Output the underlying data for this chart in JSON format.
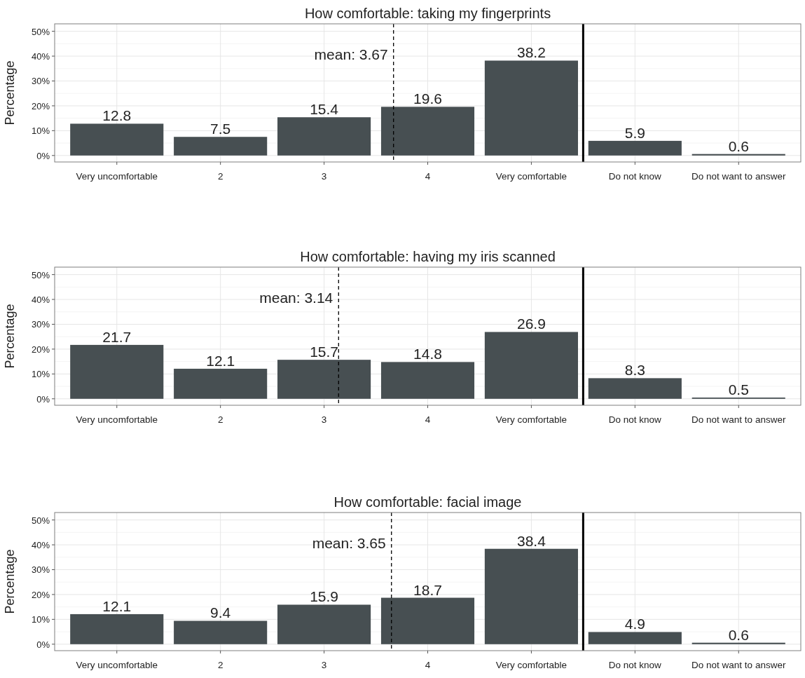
{
  "chart_data": [
    {
      "type": "bar",
      "title": "How comfortable: taking my fingerprints",
      "ylabel": "Percentage",
      "x": [
        1,
        2,
        3,
        4,
        5,
        6,
        7
      ],
      "xlim": [
        0.4,
        7.6
      ],
      "xticks": [
        {
          "value": 1,
          "label": "Very uncomfortable"
        },
        2,
        3,
        4,
        {
          "value": 5,
          "label": "Very comfortable"
        },
        {
          "value": 6,
          "label": "Do not know"
        },
        {
          "value": 7,
          "label": "Do not want to answer"
        }
      ],
      "values": [
        12.8,
        7.5,
        15.4,
        19.6,
        38.2,
        5.9,
        0.6
      ],
      "color": "#474f52",
      "data_labels": true,
      "ylim": [
        -2.6,
        53
      ],
      "yticks": [
        {
          "value": 0,
          "label": "0%"
        },
        {
          "value": 10,
          "label": "10%"
        },
        {
          "value": 20,
          "label": "20%"
        },
        {
          "value": 30,
          "label": "30%"
        },
        {
          "value": 40,
          "label": "40%"
        },
        {
          "value": 50,
          "label": "50%"
        }
      ],
      "grid": true,
      "ref_lines": [
        {
          "axis": "x",
          "value": 3.67,
          "label": "mean: 3.67",
          "line_style": "dashed"
        },
        {
          "axis": "x",
          "value": 5.5,
          "line_style": "solid"
        }
      ]
    },
    {
      "type": "bar",
      "title": "How comfortable: having my iris scanned",
      "ylabel": "Percentage",
      "x": [
        1,
        2,
        3,
        4,
        5,
        6,
        7
      ],
      "xlim": [
        0.4,
        7.6
      ],
      "xticks": [
        {
          "value": 1,
          "label": "Very uncomfortable"
        },
        2,
        3,
        4,
        {
          "value": 5,
          "label": "Very comfortable"
        },
        {
          "value": 6,
          "label": "Do not know"
        },
        {
          "value": 7,
          "label": "Do not want to answer"
        }
      ],
      "values": [
        21.7,
        12.1,
        15.7,
        14.8,
        26.9,
        8.3,
        0.5
      ],
      "color": "#474f52",
      "data_labels": true,
      "ylim": [
        -2.6,
        53
      ],
      "yticks": [
        {
          "value": 0,
          "label": "0%"
        },
        {
          "value": 10,
          "label": "10%"
        },
        {
          "value": 20,
          "label": "20%"
        },
        {
          "value": 30,
          "label": "30%"
        },
        {
          "value": 40,
          "label": "40%"
        },
        {
          "value": 50,
          "label": "50%"
        }
      ],
      "grid": true,
      "ref_lines": [
        {
          "axis": "x",
          "value": 3.14,
          "label": "mean: 3.14",
          "line_style": "dashed"
        },
        {
          "axis": "x",
          "value": 5.5,
          "line_style": "solid"
        }
      ]
    },
    {
      "type": "bar",
      "title": "How comfortable: facial image",
      "ylabel": "Percentage",
      "x": [
        1,
        2,
        3,
        4,
        5,
        6,
        7
      ],
      "xlim": [
        0.4,
        7.6
      ],
      "xticks": [
        {
          "value": 1,
          "label": "Very uncomfortable"
        },
        2,
        3,
        4,
        {
          "value": 5,
          "label": "Very comfortable"
        },
        {
          "value": 6,
          "label": "Do not know"
        },
        {
          "value": 7,
          "label": "Do not want to answer"
        }
      ],
      "values": [
        12.1,
        9.4,
        15.9,
        18.7,
        38.4,
        4.9,
        0.6
      ],
      "color": "#474f52",
      "data_labels": true,
      "ylim": [
        -2.6,
        53
      ],
      "yticks": [
        {
          "value": 0,
          "label": "0%"
        },
        {
          "value": 10,
          "label": "10%"
        },
        {
          "value": 20,
          "label": "20%"
        },
        {
          "value": 30,
          "label": "30%"
        },
        {
          "value": 40,
          "label": "40%"
        },
        {
          "value": 50,
          "label": "50%"
        }
      ],
      "grid": true,
      "ref_lines": [
        {
          "axis": "x",
          "value": 3.65,
          "label": "mean: 3.65",
          "line_style": "dashed"
        },
        {
          "axis": "x",
          "value": 5.5,
          "line_style": "solid"
        }
      ]
    }
  ]
}
